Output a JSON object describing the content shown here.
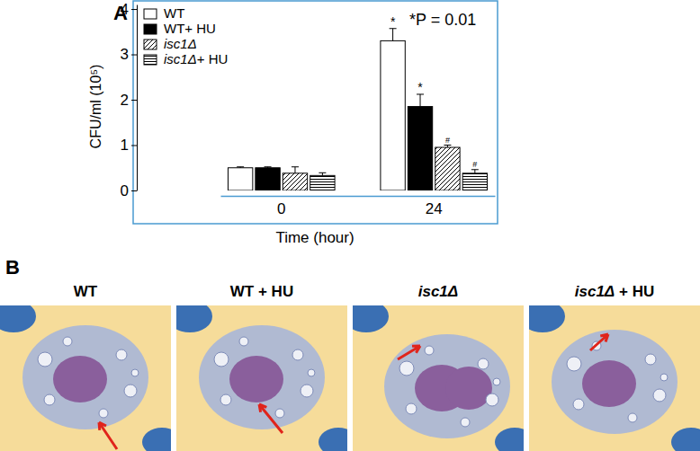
{
  "chart_data": {
    "type": "bar",
    "annotations": [
      {
        "text": "A"
      },
      {
        "text": "*P = 0.01"
      }
    ],
    "x_label": "Time (hour)",
    "y_label": "CFU/ml  (10⁵)",
    "categories": [
      "0",
      "24"
    ],
    "ylim": [
      0,
      4.1
    ],
    "yticks": [
      0,
      1,
      2,
      3,
      4
    ],
    "legend": "top-left",
    "series": [
      {
        "name": "WT",
        "color": "#ffffff",
        "marker": "solid",
        "values": [
          0.5,
          3.3
        ],
        "errors": [
          0.02,
          0.27
        ],
        "significance": [
          null,
          "*"
        ]
      },
      {
        "name": "WT+ HU",
        "color": "#000000",
        "marker": "solid",
        "values": [
          0.5,
          1.85
        ],
        "errors": [
          0.02,
          0.27
        ],
        "significance": [
          null,
          "*"
        ]
      },
      {
        "name": "isc1Δ",
        "color": "#ffffff",
        "marker": "hatch-diagonal",
        "values": [
          0.38,
          0.95
        ],
        "errors": [
          0.14,
          0.05
        ],
        "significance": [
          null,
          "#"
        ]
      },
      {
        "name": "isc1Δ+ HU",
        "color": "#ffffff",
        "marker": "hatch-horizontal",
        "values": [
          0.33,
          0.38
        ],
        "errors": [
          0.06,
          0.08
        ],
        "significance": [
          null,
          "#"
        ]
      }
    ]
  },
  "micrographs": {
    "label": "B",
    "titles": [
      "WT",
      "WT + HU",
      "isc1Δ",
      "isc1Δ + HU"
    ]
  }
}
